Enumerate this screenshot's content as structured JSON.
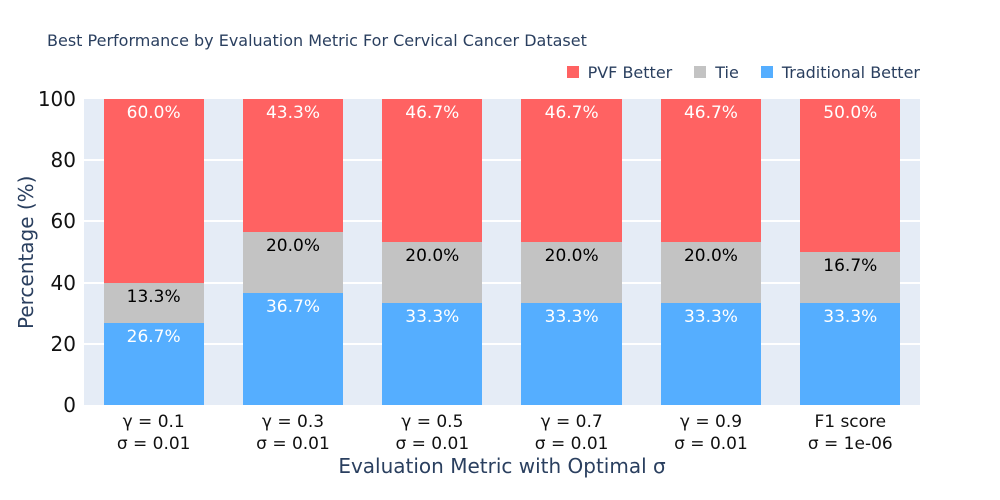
{
  "chart_data": {
    "type": "bar",
    "mode": "stacked",
    "title": "Best Performance by Evaluation Metric For Cervical Cancer Dataset",
    "xlabel": "Evaluation Metric with Optimal σ",
    "ylabel": "Percentage (%)",
    "ylim": [
      0,
      100
    ],
    "yticks": [
      0,
      20,
      40,
      60,
      80,
      100
    ],
    "grid": true,
    "plot_background": "#E5ECF6",
    "grid_color": "#FFFFFF",
    "title_color": "#2A3F5F",
    "tick_label_color": "#111111",
    "legend_position": "top-right",
    "legend_order": [
      "PVF Better",
      "Tie",
      "Traditional Better"
    ],
    "categories": [
      [
        "γ = 0.1",
        "σ = 0.01"
      ],
      [
        "γ = 0.3",
        "σ = 0.01"
      ],
      [
        "γ = 0.5",
        "σ = 0.01"
      ],
      [
        "γ = 0.7",
        "σ = 0.01"
      ],
      [
        "γ = 0.9",
        "σ = 0.01"
      ],
      [
        "F1 score",
        "σ = 1e-06"
      ]
    ],
    "series": [
      {
        "name": "Traditional Better",
        "color": "#55AEFF",
        "label_color": "#FFFFFF",
        "values": [
          26.7,
          36.7,
          33.3,
          33.3,
          33.3,
          33.3
        ]
      },
      {
        "name": "Tie",
        "color": "#C3C3C3",
        "label_color": "#000000",
        "values": [
          13.3,
          20.0,
          20.0,
          20.0,
          20.0,
          16.7
        ]
      },
      {
        "name": "PVF Better",
        "color": "#FF6262",
        "label_color": "#FFFFFF",
        "values": [
          60.0,
          43.3,
          46.7,
          46.7,
          46.7,
          50.0
        ]
      }
    ]
  }
}
